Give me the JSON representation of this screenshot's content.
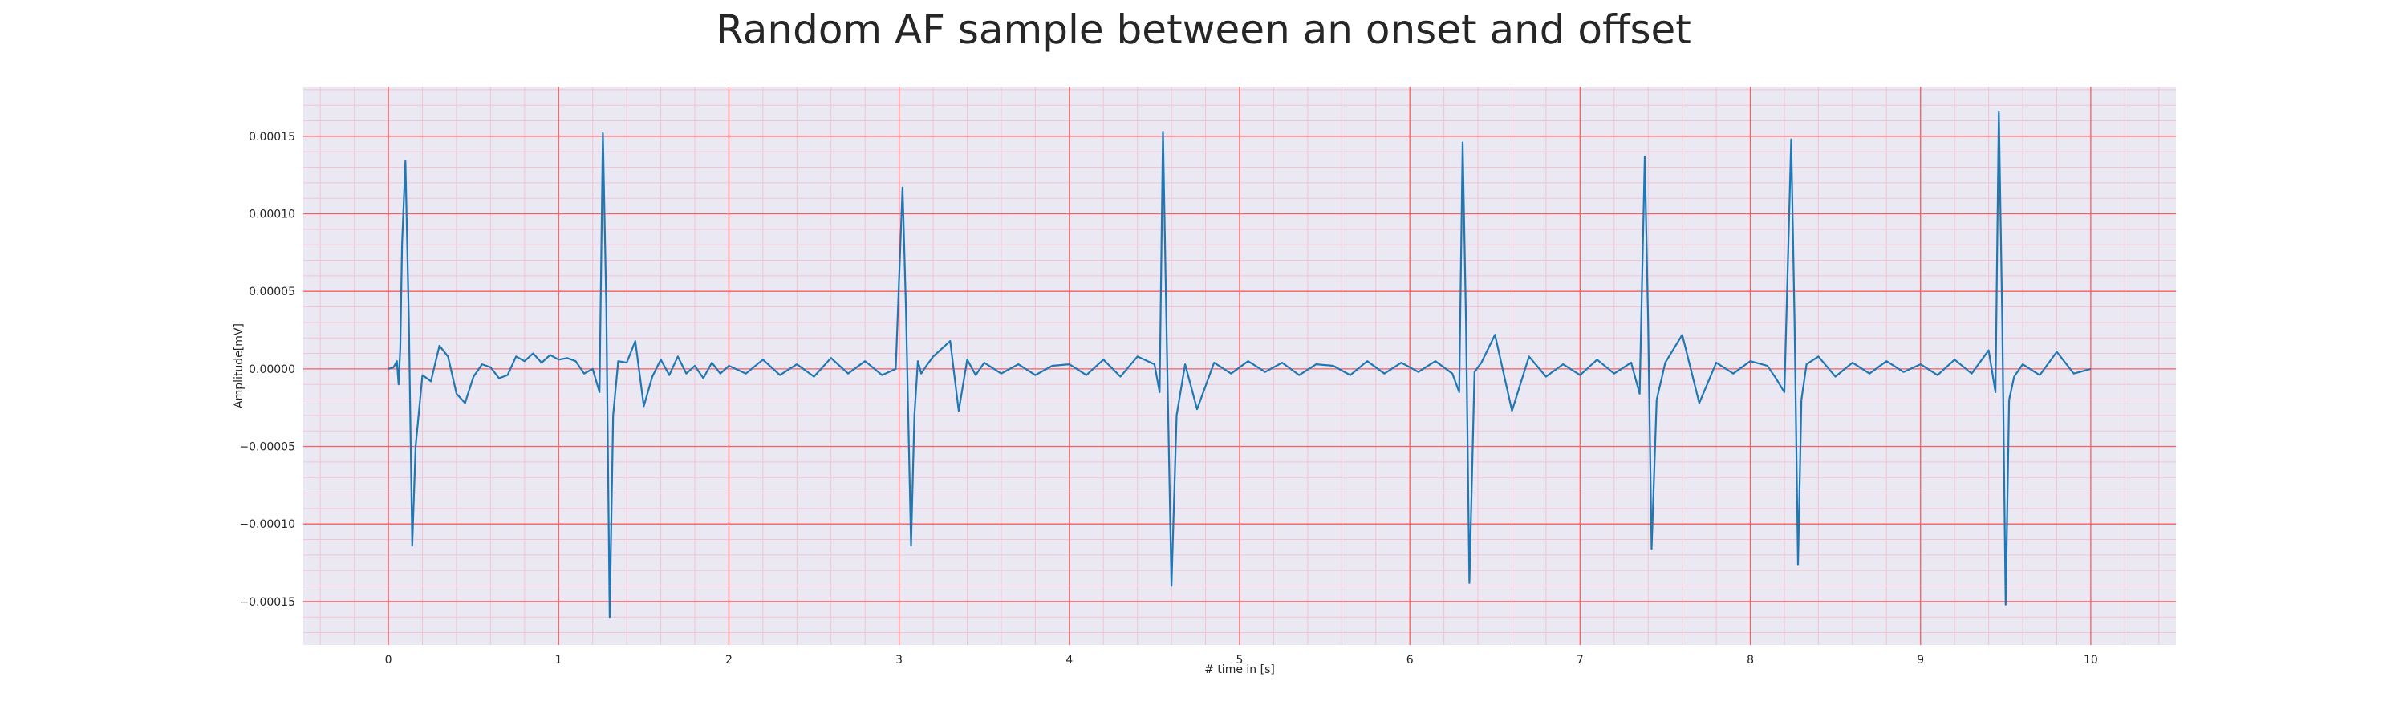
{
  "chart_data": {
    "type": "line",
    "title": "Random AF sample between an onset and offset",
    "xlabel": "# time in [s]",
    "ylabel": "Amplitude[mV]",
    "xlim": [
      -0.5,
      10.5
    ],
    "ylim": [
      -0.000178,
      0.000182
    ],
    "xticks": [
      0,
      1,
      2,
      3,
      4,
      5,
      6,
      7,
      8,
      9,
      10
    ],
    "xtick_labels": [
      "0",
      "1",
      "2",
      "3",
      "4",
      "5",
      "6",
      "7",
      "8",
      "9",
      "10"
    ],
    "yticks": [
      0.00015,
      0.0001,
      5e-05,
      0.0,
      -5e-05,
      -0.0001,
      -0.00015
    ],
    "ytick_labels": [
      "0.00015",
      "0.00010",
      "0.00005",
      "0.00000",
      "−0.00005",
      "−0.00010",
      "−0.00015"
    ],
    "grid": true,
    "minor_grid": true,
    "colors": {
      "line": "#1f77b4",
      "background": "#eae8f2",
      "major_grid": "#ff5c5c",
      "minor_grid": "#f2c4d2"
    },
    "series": [
      {
        "x": [
          0.0,
          0.03,
          0.05,
          0.06,
          0.07,
          0.08,
          0.1,
          0.12,
          0.14,
          0.16,
          0.2,
          0.25,
          0.3,
          0.35,
          0.4,
          0.45,
          0.5,
          0.55,
          0.6,
          0.65,
          0.7,
          0.75,
          0.8,
          0.85,
          0.9,
          0.95,
          1.0,
          1.05,
          1.1,
          1.15,
          1.2,
          1.24,
          1.26,
          1.28,
          1.3,
          1.32,
          1.35,
          1.4,
          1.45,
          1.5,
          1.55,
          1.6,
          1.65,
          1.7,
          1.75,
          1.8,
          1.85,
          1.9,
          1.95,
          2.0,
          2.1,
          2.2,
          2.3,
          2.4,
          2.5,
          2.6,
          2.7,
          2.8,
          2.9,
          2.98,
          3.02,
          3.04,
          3.07,
          3.09,
          3.11,
          3.13,
          3.16,
          3.2,
          3.3,
          3.35,
          3.4,
          3.45,
          3.5,
          3.6,
          3.7,
          3.8,
          3.9,
          4.0,
          4.1,
          4.2,
          4.3,
          4.4,
          4.5,
          4.53,
          4.55,
          4.57,
          4.6,
          4.63,
          4.68,
          4.75,
          4.85,
          4.95,
          5.05,
          5.15,
          5.25,
          5.35,
          5.45,
          5.55,
          5.65,
          5.75,
          5.85,
          5.95,
          6.05,
          6.15,
          6.25,
          6.29,
          6.31,
          6.33,
          6.35,
          6.38,
          6.42,
          6.5,
          6.6,
          6.7,
          6.8,
          6.9,
          7.0,
          7.1,
          7.2,
          7.3,
          7.35,
          7.38,
          7.4,
          7.42,
          7.45,
          7.5,
          7.6,
          7.7,
          7.8,
          7.9,
          8.0,
          8.1,
          8.15,
          8.2,
          8.24,
          8.26,
          8.28,
          8.3,
          8.33,
          8.4,
          8.5,
          8.6,
          8.7,
          8.8,
          8.9,
          9.0,
          9.1,
          9.2,
          9.3,
          9.4,
          9.44,
          9.46,
          9.48,
          9.5,
          9.52,
          9.55,
          9.6,
          9.7,
          9.8,
          9.9,
          10.0
        ],
        "y": [
          0.0,
          1e-06,
          5e-06,
          -1e-05,
          1.35e-05,
          8e-05,
          0.000134,
          3e-05,
          -0.000114,
          -5e-05,
          -4e-06,
          -8e-06,
          1.5e-05,
          8e-06,
          -1.6e-05,
          -2.2e-05,
          -5e-06,
          3e-06,
          1e-06,
          -6e-06,
          -4e-06,
          8e-06,
          5e-06,
          1e-05,
          4e-06,
          9e-06,
          6e-06,
          7e-06,
          5e-06,
          -3e-06,
          0.0,
          -1.5e-05,
          0.000152,
          4e-05,
          -0.00016,
          -3e-05,
          5e-06,
          4e-06,
          1.8e-05,
          -2.4e-05,
          -5e-06,
          6e-06,
          -4e-06,
          8e-06,
          -3e-06,
          2e-06,
          -6e-06,
          4e-06,
          -3e-06,
          2e-06,
          -3e-06,
          6e-06,
          -4e-06,
          3e-06,
          -5e-06,
          7e-06,
          -3e-06,
          5e-06,
          -4e-06,
          0.0,
          0.000117,
          4e-05,
          -0.000114,
          -3e-05,
          5e-06,
          -3e-06,
          2e-06,
          8e-06,
          1.8e-05,
          -2.7e-05,
          6e-06,
          -4e-06,
          4e-06,
          -3e-06,
          3e-06,
          -4e-06,
          2e-06,
          3e-06,
          -4e-06,
          6e-06,
          -5e-06,
          8e-06,
          3e-06,
          -1.5e-05,
          0.000153,
          3e-05,
          -0.00014,
          -3e-05,
          3e-06,
          -2.6e-05,
          4e-06,
          -3e-06,
          5e-06,
          -2e-06,
          4e-06,
          -4e-06,
          3e-06,
          2e-06,
          -4e-06,
          5e-06,
          -3e-06,
          4e-06,
          -2e-06,
          5e-06,
          -3e-06,
          -1.5e-05,
          0.000146,
          3e-05,
          -0.000138,
          -2e-06,
          4e-06,
          2.2e-05,
          -2.7e-05,
          8e-06,
          -5e-06,
          3e-06,
          -4e-06,
          6e-06,
          -3e-06,
          4e-06,
          -1.6e-05,
          0.000137,
          3e-05,
          -0.000116,
          -2e-05,
          4e-06,
          2.2e-05,
          -2.2e-05,
          4e-06,
          -3e-06,
          5e-06,
          2e-06,
          -6e-06,
          -1.5e-05,
          0.000148,
          3e-05,
          -0.000126,
          -2e-05,
          3e-06,
          8e-06,
          -5e-06,
          4e-06,
          -3e-06,
          5e-06,
          -2e-06,
          3e-06,
          -4e-06,
          6e-06,
          -3e-06,
          1.2e-05,
          -1.5e-05,
          0.000166,
          3e-05,
          -0.000152,
          -2e-05,
          -5e-06,
          3e-06,
          -4e-06,
          1.1e-05,
          -3e-06,
          0.0
        ]
      }
    ]
  }
}
